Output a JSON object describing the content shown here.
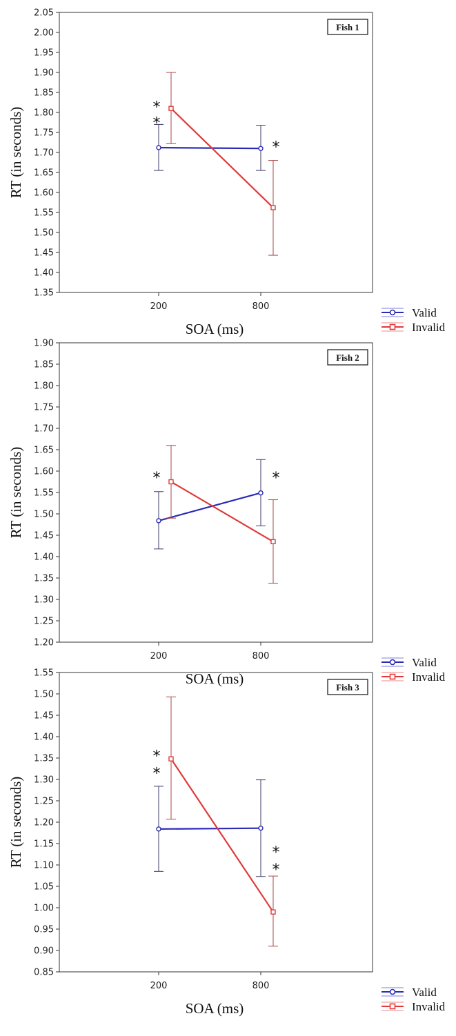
{
  "chart_data": [
    {
      "type": "line",
      "title": "Fish 1",
      "xlabel": "SOA (ms)",
      "ylabel": "RT (in seconds)",
      "categories": [
        "200",
        "800"
      ],
      "ylim": [
        1.35,
        2.05
      ],
      "yticks": [
        "1.35",
        "1.40",
        "1.45",
        "1.50",
        "1.55",
        "1.60",
        "1.65",
        "1.70",
        "1.75",
        "1.80",
        "1.85",
        "1.90",
        "1.95",
        "2.00",
        "2.05"
      ],
      "legend_position": "bottom-right, outside",
      "series": [
        {
          "name": "Valid",
          "color": "#2a2ab8",
          "marker": "circle",
          "values": [
            1.712,
            1.71
          ],
          "err_low": [
            1.655,
            1.655
          ],
          "err_high": [
            1.77,
            1.768
          ]
        },
        {
          "name": "Invalid",
          "color": "#e03a3a",
          "marker": "square",
          "values": [
            1.81,
            1.562
          ],
          "err_low": [
            1.722,
            1.443
          ],
          "err_high": [
            1.9,
            1.68
          ]
        }
      ],
      "annotations": [
        {
          "text": "*",
          "category": "200",
          "y": 1.825
        },
        {
          "text": "*",
          "category": "200",
          "y": 1.785
        },
        {
          "text": "*",
          "category": "800",
          "y": 1.725
        }
      ]
    },
    {
      "type": "line",
      "title": "Fish 2",
      "xlabel": "SOA (ms)",
      "ylabel": "RT (in seconds)",
      "categories": [
        "200",
        "800"
      ],
      "ylim": [
        1.2,
        1.9
      ],
      "yticks": [
        "1.20",
        "1.25",
        "1.30",
        "1.35",
        "1.40",
        "1.45",
        "1.50",
        "1.55",
        "1.60",
        "1.65",
        "1.70",
        "1.75",
        "1.80",
        "1.85",
        "1.90"
      ],
      "legend_position": "bottom-right, outside",
      "series": [
        {
          "name": "Valid",
          "color": "#2a2ab8",
          "marker": "circle",
          "values": [
            1.484,
            1.549
          ],
          "err_low": [
            1.418,
            1.472
          ],
          "err_high": [
            1.552,
            1.627
          ]
        },
        {
          "name": "Invalid",
          "color": "#e03a3a",
          "marker": "square",
          "values": [
            1.575,
            1.435
          ],
          "err_low": [
            1.49,
            1.338
          ],
          "err_high": [
            1.66,
            1.533
          ]
        }
      ],
      "annotations": [
        {
          "text": "*",
          "category": "200",
          "y": 1.595
        },
        {
          "text": "*",
          "category": "800",
          "y": 1.595
        }
      ]
    },
    {
      "type": "line",
      "title": "Fish 3",
      "xlabel": "SOA (ms)",
      "ylabel": "RT (in seconds)",
      "categories": [
        "200",
        "800"
      ],
      "ylim": [
        0.85,
        1.55
      ],
      "yticks": [
        "0.85",
        "0.90",
        "0.95",
        "1.00",
        "1.05",
        "1.10",
        "1.15",
        "1.20",
        "1.25",
        "1.30",
        "1.35",
        "1.40",
        "1.45",
        "1.50",
        "1.55"
      ],
      "legend_position": "bottom-right, outside",
      "series": [
        {
          "name": "Valid",
          "color": "#2a2ab8",
          "marker": "circle",
          "values": [
            1.184,
            1.186
          ],
          "err_low": [
            1.085,
            1.073
          ],
          "err_high": [
            1.284,
            1.299
          ]
        },
        {
          "name": "Invalid",
          "color": "#e03a3a",
          "marker": "square",
          "values": [
            1.348,
            0.99
          ],
          "err_low": [
            1.207,
            0.91
          ],
          "err_high": [
            1.493,
            1.074
          ]
        }
      ],
      "annotations": [
        {
          "text": "*",
          "category": "200",
          "y": 1.365
        },
        {
          "text": "*",
          "category": "200",
          "y": 1.325
        },
        {
          "text": "*",
          "category": "800",
          "y": 1.14
        },
        {
          "text": "*",
          "category": "800",
          "y": 1.1
        }
      ]
    }
  ]
}
